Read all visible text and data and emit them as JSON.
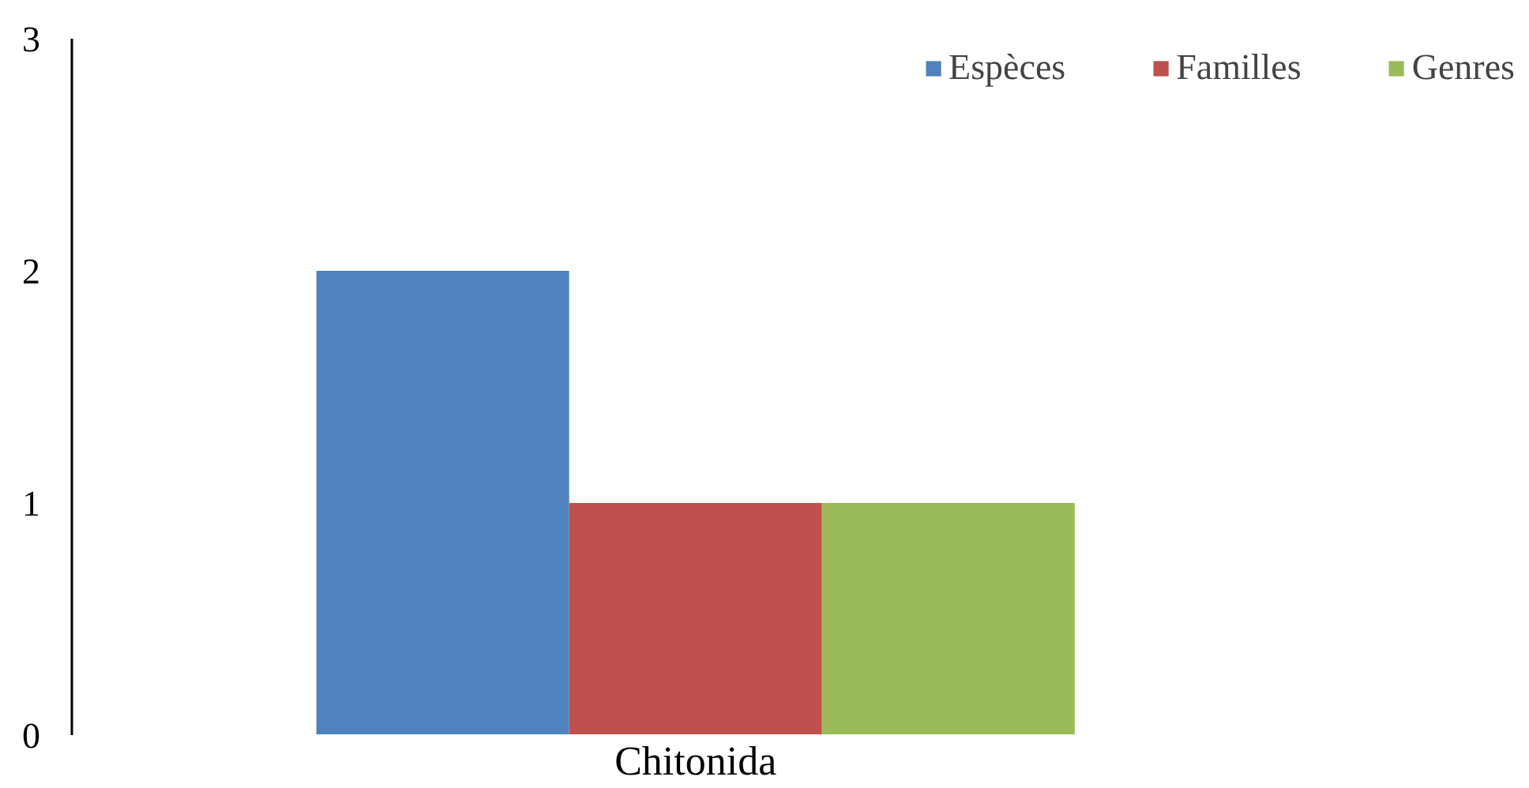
{
  "chart_data": {
    "type": "bar",
    "categories": [
      "Chitonida"
    ],
    "series": [
      {
        "name": "Espèces",
        "color": "#4f81bd",
        "values": [
          2
        ]
      },
      {
        "name": "Familles",
        "color": "#c0504d",
        "values": [
          1
        ]
      },
      {
        "name": "Genres",
        "color": "#9bbb59",
        "values": [
          1
        ]
      }
    ],
    "ylim": [
      0,
      3
    ],
    "yticks": [
      0,
      1,
      2,
      3
    ],
    "grid": false,
    "legend": "top right"
  }
}
